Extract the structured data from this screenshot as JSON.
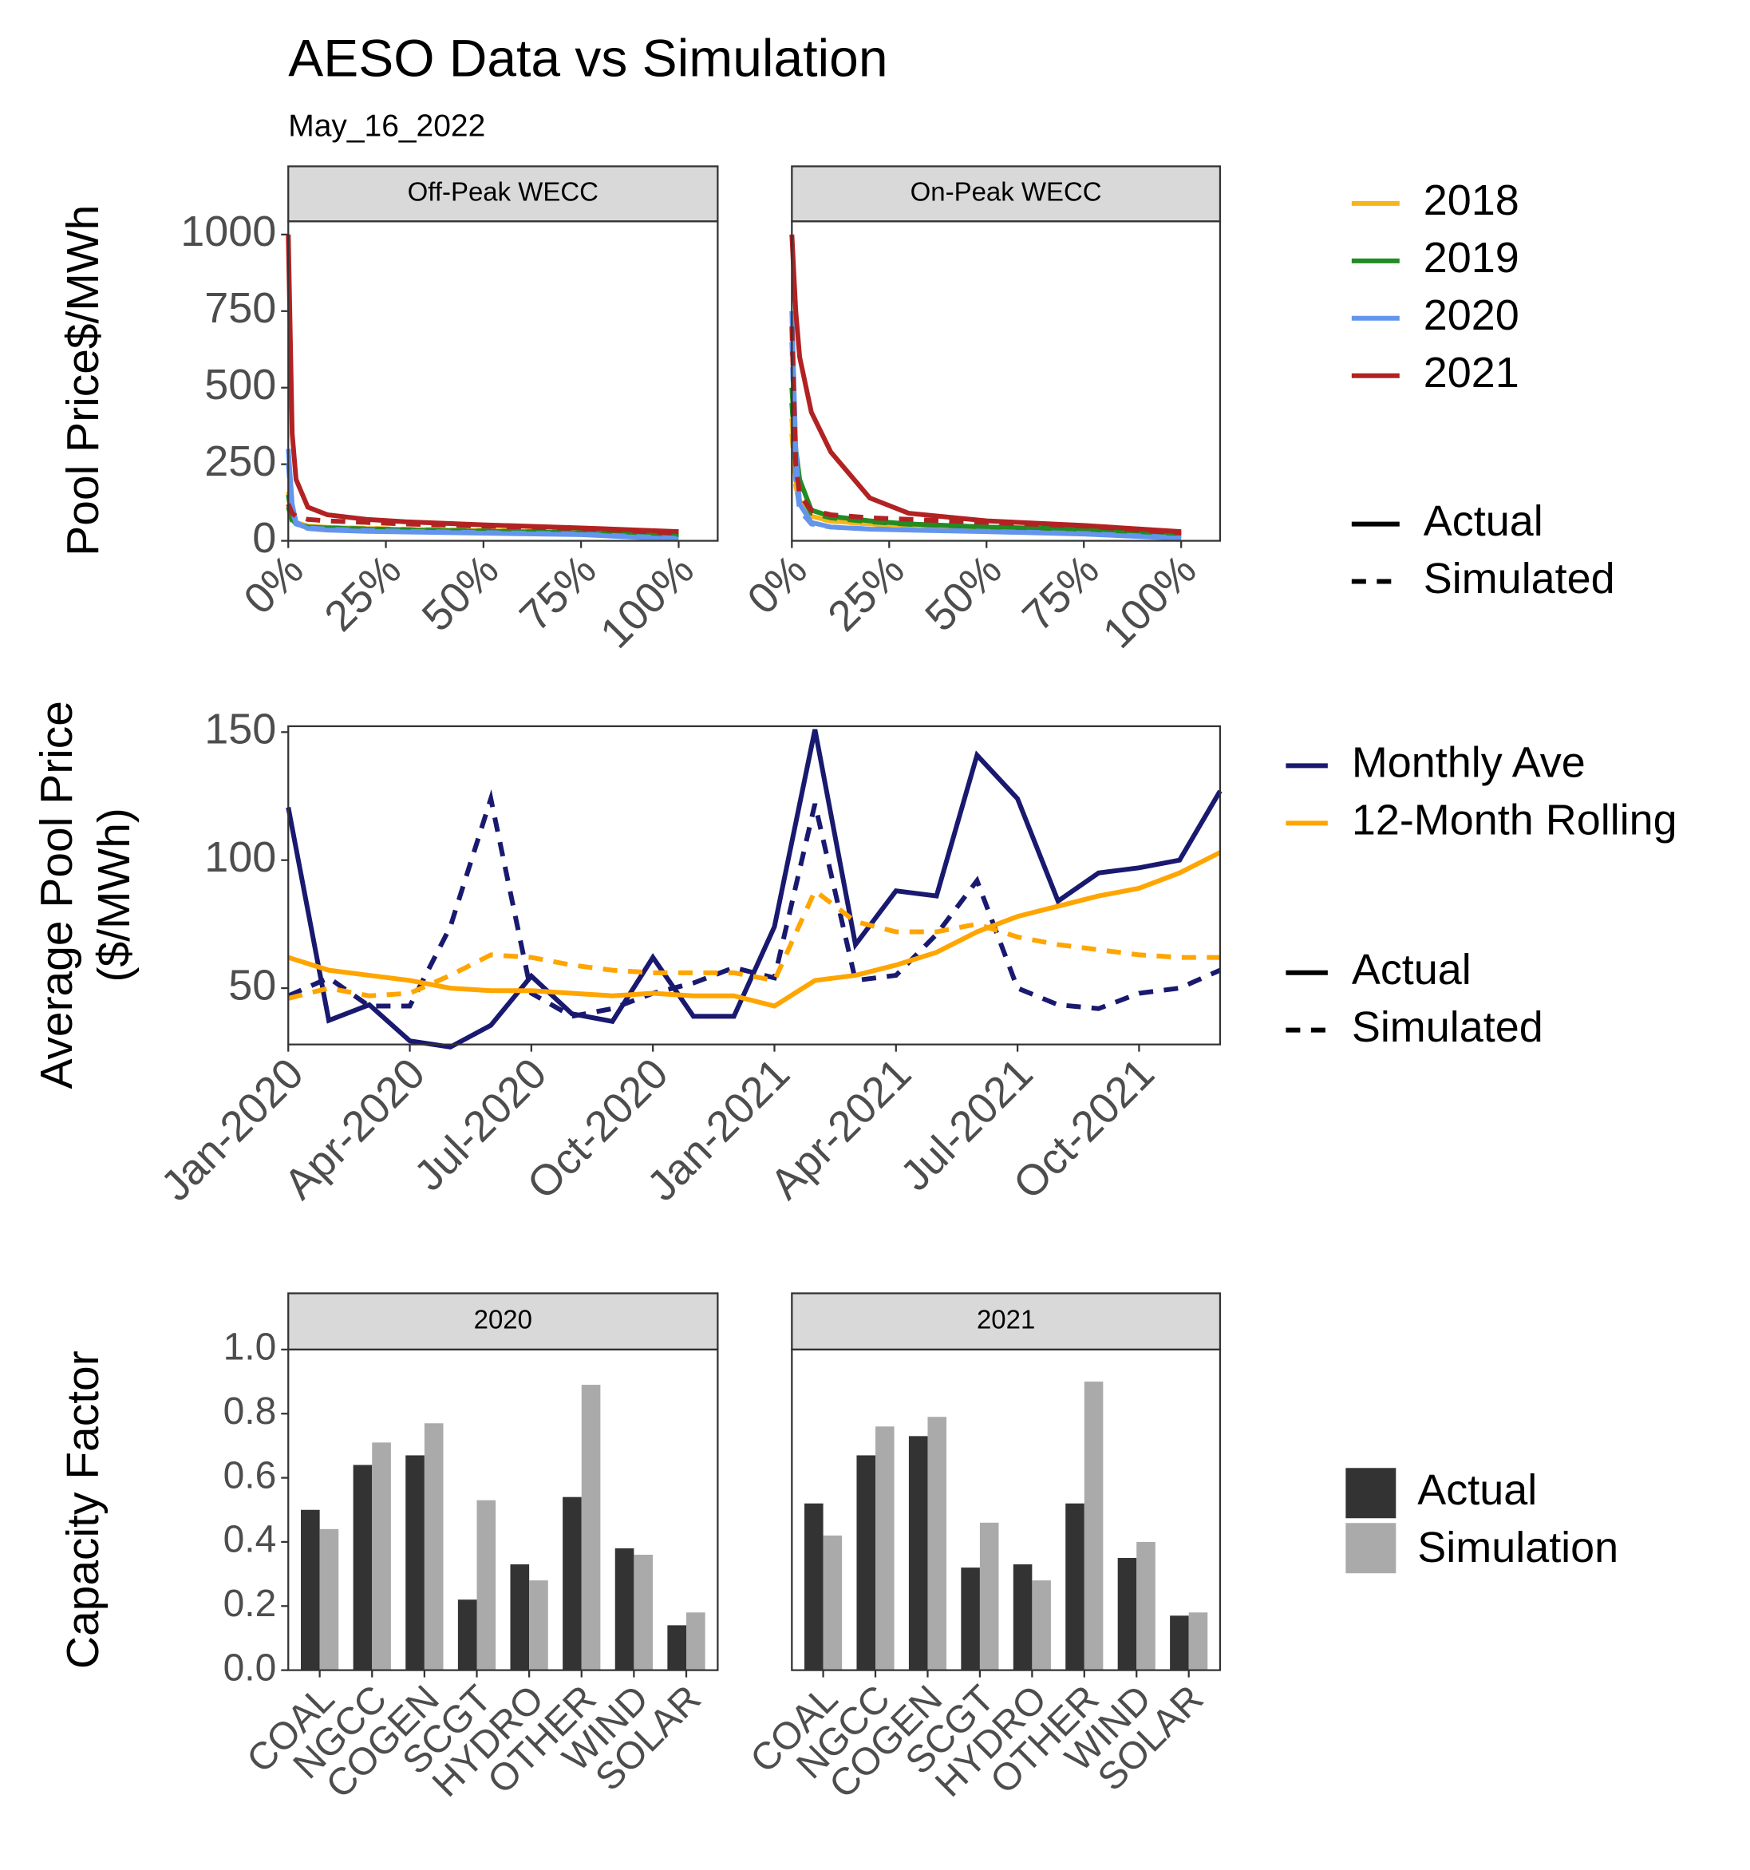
{
  "chart_data": [
    {
      "type": "duration",
      "title": "AESO Data vs Simulation",
      "subtitle": "May_16_2022",
      "y_label": "Pool Price$/MWh",
      "x": [
        0,
        0.01,
        0.02,
        0.05,
        0.1,
        0.2,
        0.3,
        0.5,
        0.75,
        1
      ],
      "xlim": [
        0,
        1.1
      ],
      "ylim": [
        0,
        1043
      ],
      "xticks": [
        {
          "value": 0,
          "label": "0%"
        },
        {
          "value": 0.25,
          "label": "25%"
        },
        {
          "value": 0.5,
          "label": "50%"
        },
        {
          "value": 0.75,
          "label": "75%"
        },
        {
          "value": 1,
          "label": "100%"
        }
      ],
      "yticks": [
        0,
        250,
        500,
        750,
        1000
      ],
      "grid": false,
      "groups": [
        {
          "name": "2018",
          "color": "#f6b51a"
        },
        {
          "name": "2019",
          "color": "#228b22"
        },
        {
          "name": "2020",
          "color": "#6495ed"
        },
        {
          "name": "2021",
          "color": "#b22222"
        }
      ],
      "linetypes": [
        "Actual",
        "Simulated"
      ],
      "facets": [
        {
          "label": "Off-Peak WECC",
          "series": [
            {
              "group": 0,
              "linetype": 0,
              "values": [
                160,
                80,
                60,
                48,
                44,
                40,
                37,
                33,
                28,
                18
              ]
            },
            {
              "group": 0,
              "linetype": 1,
              "values": [
                120,
                70,
                55,
                47,
                44,
                41,
                38,
                34,
                29,
                20
              ]
            },
            {
              "group": 1,
              "linetype": 0,
              "values": [
                150,
                70,
                55,
                45,
                42,
                38,
                35,
                31,
                26,
                15
              ]
            },
            {
              "group": 1,
              "linetype": 1,
              "values": [
                110,
                65,
                52,
                45,
                42,
                39,
                36,
                32,
                27,
                16
              ]
            },
            {
              "group": 2,
              "linetype": 0,
              "values": [
                300,
                120,
                60,
                40,
                35,
                31,
                29,
                25,
                20,
                5
              ]
            },
            {
              "group": 2,
              "linetype": 1,
              "values": [
                250,
                100,
                55,
                42,
                38,
                34,
                31,
                27,
                22,
                8
              ]
            },
            {
              "group": 3,
              "linetype": 0,
              "values": [
                1000,
                350,
                200,
                110,
                85,
                70,
                62,
                52,
                42,
                30
              ]
            },
            {
              "group": 3,
              "linetype": 1,
              "values": [
                120,
                90,
                80,
                70,
                65,
                60,
                55,
                48,
                40,
                25
              ]
            }
          ]
        },
        {
          "label": "On-Peak WECC",
          "series": [
            {
              "group": 0,
              "linetype": 0,
              "values": [
                400,
                200,
                130,
                80,
                65,
                55,
                50,
                42,
                35,
                20
              ]
            },
            {
              "group": 0,
              "linetype": 1,
              "values": [
                350,
                180,
                120,
                78,
                64,
                55,
                50,
                43,
                36,
                20
              ]
            },
            {
              "group": 1,
              "linetype": 0,
              "values": [
                500,
                300,
                200,
                100,
                80,
                65,
                55,
                45,
                38,
                20
              ]
            },
            {
              "group": 1,
              "linetype": 1,
              "values": [
                450,
                250,
                160,
                90,
                75,
                62,
                54,
                45,
                37,
                18
              ]
            },
            {
              "group": 2,
              "linetype": 0,
              "values": [
                750,
                300,
                120,
                60,
                45,
                38,
                35,
                30,
                22,
                8
              ]
            },
            {
              "group": 2,
              "linetype": 1,
              "values": [
                650,
                200,
                100,
                55,
                45,
                39,
                36,
                31,
                24,
                10
              ]
            },
            {
              "group": 3,
              "linetype": 0,
              "values": [
                1000,
                750,
                600,
                420,
                290,
                140,
                90,
                65,
                50,
                30
              ]
            },
            {
              "group": 3,
              "linetype": 1,
              "values": [
                700,
                250,
                150,
                100,
                85,
                75,
                70,
                60,
                48,
                25
              ]
            }
          ]
        }
      ]
    },
    {
      "type": "line",
      "y_label": [
        "Average Pool Price",
        "($/MWh)"
      ],
      "categories": [
        "Jan-2020",
        null,
        null,
        "Apr-2020",
        null,
        null,
        "Jul-2020",
        null,
        null,
        "Oct-2020",
        null,
        null,
        "Jan-2021",
        null,
        null,
        "Apr-2021",
        null,
        null,
        "Jul-2021",
        null,
        null,
        "Oct-2021",
        null,
        null
      ],
      "ylim": [
        28,
        152.3
      ],
      "yticks": [
        50,
        100,
        150
      ],
      "grid": false,
      "groups": [
        {
          "name": "Monthly Ave",
          "color": "#191970"
        },
        {
          "name": "12-Month Rolling",
          "color": "#ffa500"
        }
      ],
      "linetypes": [
        "Actual",
        "Simulated"
      ],
      "series": [
        {
          "group": 0,
          "linetype": 0,
          "values": [
            120.6,
            37.4,
            43.5,
            29.4,
            27,
            35.5,
            54.7,
            40,
            37,
            62,
            39,
            39,
            74,
            151,
            67,
            88,
            86,
            141,
            124,
            84,
            95,
            97,
            100,
            127
          ]
        },
        {
          "group": 0,
          "linetype": 1,
          "values": [
            47,
            54,
            43,
            43,
            74,
            124,
            48,
            39,
            42,
            48,
            52,
            58,
            54,
            122,
            53,
            55,
            71,
            92,
            50,
            43.5,
            42,
            48,
            50,
            57
          ]
        },
        {
          "group": 1,
          "linetype": 0,
          "values": [
            62,
            57,
            55,
            53,
            50,
            49,
            49,
            48,
            47,
            48,
            47,
            47,
            43,
            53,
            55,
            59,
            64,
            72,
            78,
            82,
            86,
            89,
            95,
            103
          ]
        },
        {
          "group": 1,
          "linetype": 1,
          "values": [
            46,
            50,
            47,
            48,
            55,
            63,
            62,
            59,
            57,
            56,
            56,
            56,
            53,
            88,
            76,
            72,
            72,
            75,
            70,
            67,
            65,
            63,
            62,
            62
          ]
        }
      ]
    },
    {
      "type": "bar",
      "y_label": "Capacity Factor",
      "categories": [
        "COAL",
        "NGCC",
        "COGEN",
        "SCGT",
        "HYDRO",
        "OTHER",
        "WIND",
        "SOLAR"
      ],
      "ylim": [
        0,
        1.0
      ],
      "yticks": [
        {
          "value": 0,
          "label": "0.0"
        },
        0.2,
        0.4,
        0.6,
        0.8,
        {
          "value": 1,
          "label": "1.0"
        }
      ],
      "grid": false,
      "legend_names": [
        "Actual",
        "Simulation"
      ],
      "colors": [
        "#333333",
        "#aaaaaa"
      ],
      "facets": [
        {
          "label": "2020",
          "series": [
            [
              0.5,
              0.64,
              0.67,
              0.22,
              0.33,
              0.54,
              0.38,
              0.14
            ],
            [
              0.44,
              0.71,
              0.77,
              0.53,
              0.28,
              0.89,
              0.36,
              0.18
            ]
          ]
        },
        {
          "label": "2021",
          "series": [
            [
              0.52,
              0.67,
              0.73,
              0.32,
              0.33,
              0.52,
              0.35,
              0.17
            ],
            [
              0.42,
              0.76,
              0.79,
              0.46,
              0.28,
              0.9,
              0.4,
              0.18
            ]
          ]
        }
      ]
    }
  ]
}
